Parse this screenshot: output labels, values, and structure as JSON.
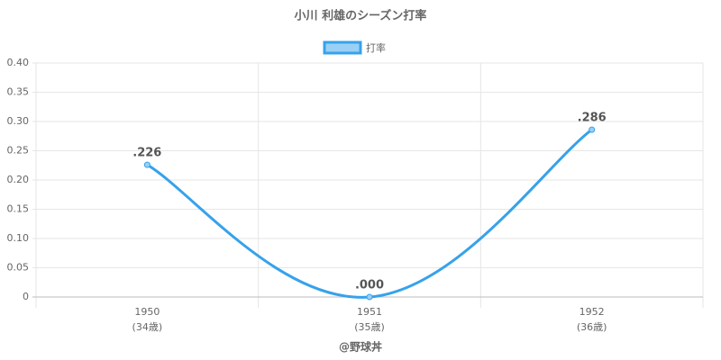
{
  "chart_data": {
    "type": "line",
    "title": "小川 利雄のシーズン打率",
    "categories": [
      "1950",
      "1951",
      "1952"
    ],
    "category_sublabels": [
      "(34歳)",
      "(35歳)",
      "(36歳)"
    ],
    "series": [
      {
        "name": "打率",
        "color": "#36a2eb",
        "values": [
          0.226,
          0,
          0.286
        ],
        "value_labels": [
          ".226",
          ".000",
          ".286"
        ]
      }
    ],
    "ylim": [
      0,
      0.4
    ],
    "yticks": [
      0,
      0.05,
      {
        "value": 0.1,
        "label": "0.10"
      },
      0.15,
      {
        "value": 0.2,
        "label": "0.20"
      },
      0.25,
      {
        "value": 0.3,
        "label": "0.30"
      },
      0.35,
      {
        "value": 0.4,
        "label": "0.40"
      }
    ],
    "grid": true,
    "credit": "@野球丼"
  }
}
